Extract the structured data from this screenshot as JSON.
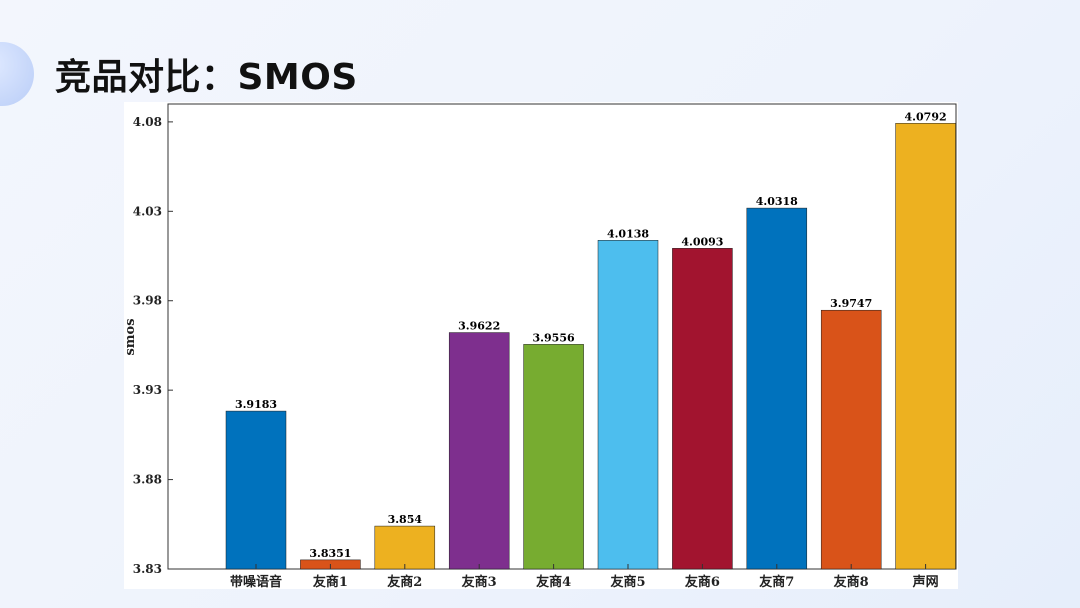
{
  "slide": {
    "title": "竞品对比：SMOS"
  },
  "chart_data": {
    "type": "bar",
    "title": "",
    "xlabel": "",
    "ylabel": "smos",
    "ylim": [
      3.83,
      4.09
    ],
    "yticks": [
      3.83,
      3.88,
      3.93,
      3.98,
      4.03,
      4.08
    ],
    "ytick_labels": [
      "3.83",
      "3.88",
      "3.93",
      "3.98",
      "4.03",
      "4.08"
    ],
    "grid": false,
    "categories": [
      "带噪语音",
      "友商1",
      "友商2",
      "友商3",
      "友商4",
      "友商5",
      "友商6",
      "友商7",
      "友商8",
      "声网"
    ],
    "values": [
      3.9183,
      3.8351,
      3.854,
      3.9622,
      3.9556,
      4.0138,
      4.0093,
      4.0318,
      3.9747,
      4.0792
    ],
    "value_labels": [
      "3.9183",
      "3.8351",
      "3.854",
      "3.9622",
      "3.9556",
      "4.0138",
      "4.0093",
      "4.0318",
      "3.9747",
      "4.0792"
    ],
    "colors": [
      "#0072BD",
      "#D95319",
      "#EDB120",
      "#7E2F8E",
      "#77AC30",
      "#4DBEEE",
      "#A2142F",
      "#0072BD",
      "#D95319",
      "#EDB120"
    ]
  }
}
